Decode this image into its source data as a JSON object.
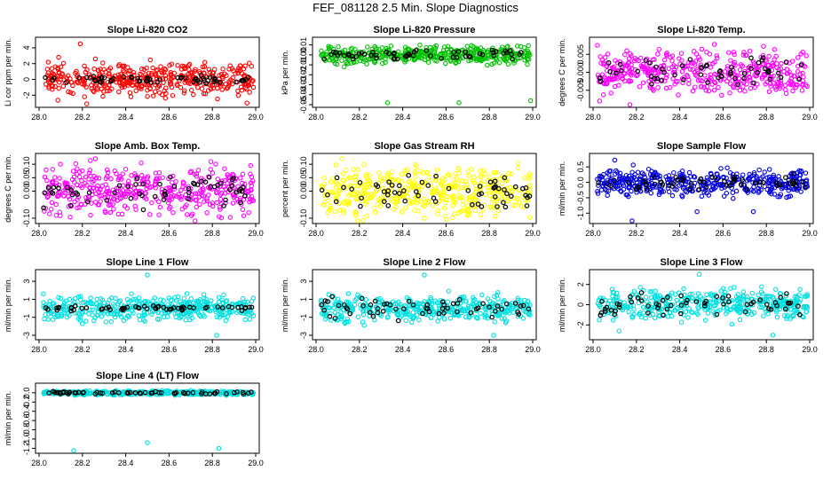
{
  "figure_title": "FEF_081128  2.5 Min. Slope Diagnostics",
  "colors": {
    "overlay": "#000000",
    "axis": "#000000"
  },
  "chart_data": [
    {
      "type": "scatter",
      "title": "Slope Li-820 CO2",
      "ylabel": "Li cor ppm per min.",
      "color": "#ff0000",
      "xlim": [
        28.0,
        29.0
      ],
      "ylim": [
        -3.2,
        5.0
      ],
      "xticks": [
        28.0,
        28.2,
        28.4,
        28.6,
        28.8,
        29.0
      ],
      "xtick_labels": [
        "28.0",
        "28.2",
        "28.4",
        "28.6",
        "28.8",
        "29.0"
      ],
      "yticks": [
        -2,
        0,
        2,
        4
      ],
      "ytick_labels": [
        "-2",
        "0",
        "2",
        "4"
      ],
      "spread": [
        1.4,
        0.35
      ],
      "outliers": [
        [
          28.19,
          4.5
        ],
        [
          28.22,
          -3.1
        ],
        [
          28.96,
          -3.0
        ],
        [
          28.26,
          2.6
        ]
      ],
      "seed": 11
    },
    {
      "type": "scatter",
      "title": "Slope Li-820 Pressure",
      "ylabel": "kPa per min.",
      "color": "#00c000",
      "xlim": [
        28.0,
        29.0
      ],
      "ylim": [
        -0.05,
        0.015
      ],
      "xticks": [
        28.0,
        28.2,
        28.4,
        28.6,
        28.8,
        29.0
      ],
      "xtick_labels": [
        "28.0",
        "28.2",
        "28.4",
        "28.6",
        "28.8",
        "29.0"
      ],
      "yticks": [
        -0.05,
        -0.04,
        -0.03,
        -0.02,
        -0.01,
        0.0,
        0.01
      ],
      "ytick_labels": [
        "-0.05",
        "-0.04",
        "-0.03",
        "-0.02",
        "-0.01",
        "0.00",
        "0.01"
      ],
      "spread": [
        0.006,
        0.004
      ],
      "outliers": [
        [
          28.33,
          -0.048
        ],
        [
          28.66,
          -0.048
        ],
        [
          28.99,
          -0.046
        ],
        [
          28.13,
          -0.012
        ]
      ],
      "seed": 23
    },
    {
      "type": "scatter",
      "title": "Slope Li-820 Temp.",
      "ylabel": "degrees C per min.",
      "color": "#ff00ff",
      "xlim": [
        28.0,
        29.0
      ],
      "ylim": [
        -0.009,
        0.009
      ],
      "xticks": [
        28.0,
        28.2,
        28.4,
        28.6,
        28.8,
        29.0
      ],
      "xtick_labels": [
        "28.0",
        "28.2",
        "28.4",
        "28.6",
        "28.8",
        "29.0"
      ],
      "yticks": [
        -0.005,
        0.0,
        0.005
      ],
      "ytick_labels": [
        "-0.005",
        "0.000",
        "0.005"
      ],
      "spread": [
        0.004,
        0.003
      ],
      "outliers": [
        [
          28.03,
          -0.008
        ],
        [
          28.17,
          -0.009
        ],
        [
          28.02,
          0.0075
        ]
      ],
      "seed": 37
    },
    {
      "type": "scatter",
      "title": "Slope Amb. Box Temp.",
      "ylabel": "degrees C per min.",
      "color": "#ff00ff",
      "xlim": [
        28.0,
        29.0
      ],
      "ylim": [
        -0.11,
        0.13
      ],
      "xticks": [
        28.0,
        28.2,
        28.4,
        28.6,
        28.8,
        29.0
      ],
      "xtick_labels": [
        "28.0",
        "28.2",
        "28.4",
        "28.6",
        "28.8",
        "29.0"
      ],
      "yticks": [
        -0.1,
        0.0,
        0.05,
        0.1
      ],
      "ytick_labels": [
        "-0.10",
        "0.00",
        "0.05",
        "0.10"
      ],
      "spread": [
        0.06,
        0.045
      ],
      "outliers": [
        [
          28.26,
          0.12
        ],
        [
          28.72,
          -0.11
        ]
      ],
      "seed": 41
    },
    {
      "type": "scatter",
      "title": "Slope Gas Stream RH",
      "ylabel": "percent per min.",
      "color": "#ffff00",
      "xlim": [
        28.0,
        29.0
      ],
      "ylim": [
        -0.11,
        0.13
      ],
      "xticks": [
        28.0,
        28.2,
        28.4,
        28.6,
        28.8,
        29.0
      ],
      "xtick_labels": [
        "28.0",
        "28.2",
        "28.4",
        "28.6",
        "28.8",
        "29.0"
      ],
      "yticks": [
        -0.1,
        0.0,
        0.05,
        0.1
      ],
      "ytick_labels": [
        "-0.10",
        "0.00",
        "0.05",
        "0.10"
      ],
      "spread": [
        0.065,
        0.05
      ],
      "outliers": [
        [
          28.5,
          -0.1
        ],
        [
          28.12,
          0.12
        ]
      ],
      "seed": 53
    },
    {
      "type": "scatter",
      "title": "Slope Sample Flow",
      "ylabel": "ml/min per min.",
      "color": "#0000e0",
      "xlim": [
        28.0,
        29.0
      ],
      "ylim": [
        -1.25,
        0.85
      ],
      "xticks": [
        28.0,
        28.2,
        28.4,
        28.6,
        28.8,
        29.0
      ],
      "xtick_labels": [
        "28.0",
        "28.2",
        "28.4",
        "28.6",
        "28.8",
        "29.0"
      ],
      "yticks": [
        -1.0,
        -0.5,
        0.0,
        0.5
      ],
      "ytick_labels": [
        "-1.0",
        "-0.5",
        "0.0",
        "0.5"
      ],
      "spread": [
        0.3,
        0.2
      ],
      "outliers": [
        [
          28.1,
          0.72
        ],
        [
          28.18,
          -1.25
        ],
        [
          28.48,
          -0.95
        ],
        [
          28.74,
          -0.95
        ]
      ],
      "seed": 67
    },
    {
      "type": "scatter",
      "title": "Slope Line 1 Flow",
      "ylabel": "ml/min per min.",
      "color": "#00e0e0",
      "xlim": [
        28.0,
        29.0
      ],
      "ylim": [
        -3.2,
        4.0
      ],
      "xticks": [
        28.0,
        28.2,
        28.4,
        28.6,
        28.8,
        29.0
      ],
      "xtick_labels": [
        "28.0",
        "28.2",
        "28.4",
        "28.6",
        "28.8",
        "29.0"
      ],
      "yticks": [
        -3,
        -1,
        1,
        3
      ],
      "ytick_labels": [
        "-3",
        "-1",
        "1",
        "3"
      ],
      "spread": [
        0.9,
        0.2
      ],
      "outliers": [
        [
          28.5,
          3.7
        ],
        [
          28.82,
          -3.0
        ],
        [
          28.02,
          1.6
        ]
      ],
      "seed": 71
    },
    {
      "type": "scatter",
      "title": "Slope Line 2 Flow",
      "ylabel": "ml/min per min.",
      "color": "#00e0e0",
      "xlim": [
        28.0,
        29.0
      ],
      "ylim": [
        -3.2,
        4.0
      ],
      "xticks": [
        28.0,
        28.2,
        28.4,
        28.6,
        28.8,
        29.0
      ],
      "xtick_labels": [
        "28.0",
        "28.2",
        "28.4",
        "28.6",
        "28.8",
        "29.0"
      ],
      "yticks": [
        -3,
        -1,
        1,
        3
      ],
      "ytick_labels": [
        "-3",
        "-1",
        "1",
        "3"
      ],
      "spread": [
        1.0,
        0.9
      ],
      "outliers": [
        [
          28.5,
          3.7
        ],
        [
          28.82,
          -3.0
        ]
      ],
      "seed": 83
    },
    {
      "type": "scatter",
      "title": "Slope Line 3 Flow",
      "ylabel": "ml/min per min.",
      "color": "#00e0e0",
      "xlim": [
        28.0,
        29.0
      ],
      "ylim": [
        -3.2,
        3.2
      ],
      "xticks": [
        28.0,
        28.2,
        28.4,
        28.6,
        28.8,
        29.0
      ],
      "xtick_labels": [
        "28.0",
        "28.2",
        "28.4",
        "28.6",
        "28.8",
        "29.0"
      ],
      "yticks": [
        -2,
        0,
        2
      ],
      "ytick_labels": [
        "-2",
        "0",
        "2"
      ],
      "spread": [
        1.0,
        0.9
      ],
      "outliers": [
        [
          28.49,
          3.0
        ],
        [
          28.83,
          -3.0
        ],
        [
          28.12,
          -2.6
        ]
      ],
      "seed": 97
    },
    {
      "type": "scatter",
      "title": "Slope Line 4 (LT) Flow",
      "ylabel": "ml/min per min.",
      "color": "#00e0e0",
      "xlim": [
        28.0,
        29.0
      ],
      "ylim": [
        -1.25,
        0.15
      ],
      "xticks": [
        28.0,
        28.2,
        28.4,
        28.6,
        28.8,
        29.0
      ],
      "xtick_labels": [
        "28.0",
        "28.2",
        "28.4",
        "28.6",
        "28.8",
        "29.0"
      ],
      "yticks": [
        -1.2,
        -1.0,
        -0.8,
        -0.6,
        -0.4,
        -0.2,
        0.0
      ],
      "ytick_labels": [
        "-1.2",
        "-1.0",
        "-0.8",
        "-0.6",
        "-0.4",
        "-0.2",
        "0.0"
      ],
      "spread": [
        0.03,
        0.02
      ],
      "outliers": [
        [
          28.5,
          -1.08
        ],
        [
          28.16,
          -1.25
        ],
        [
          28.83,
          -1.2
        ]
      ],
      "seed": 101
    }
  ]
}
